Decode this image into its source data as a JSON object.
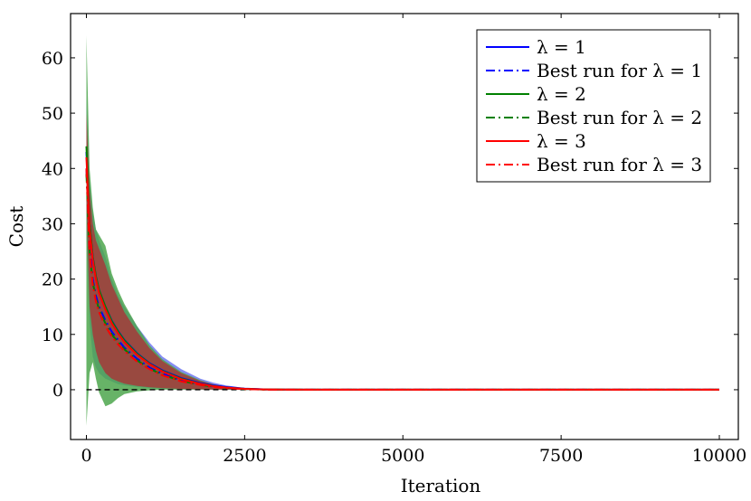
{
  "chart_data": {
    "type": "area",
    "xlabel": "Iteration",
    "ylabel": "Cost",
    "xlim": [
      -250,
      10300
    ],
    "ylim": [
      -9,
      68
    ],
    "xticks": [
      0,
      2500,
      5000,
      7500,
      10000
    ],
    "xtick_labels": [
      "0",
      "2500",
      "5000",
      "7500",
      "10000"
    ],
    "yticks": [
      0,
      10,
      20,
      30,
      40,
      50,
      60
    ],
    "ytick_labels": [
      "0",
      "10",
      "20",
      "30",
      "40",
      "50",
      "60"
    ],
    "grid": false,
    "legend_position": "top-right",
    "reference_line": {
      "y": 0,
      "style": "dashed",
      "color": "#000000"
    },
    "x": [
      0,
      50,
      100,
      150,
      200,
      300,
      400,
      500,
      600,
      800,
      1000,
      1200,
      1500,
      1800,
      2000,
      2200,
      2500,
      2800,
      3000,
      3500,
      4000,
      5000,
      6000,
      7000,
      8000,
      9000,
      10000
    ],
    "series": [
      {
        "name": "λ = 1",
        "color": "#0000ff",
        "style": "solid",
        "band_color": "#6f78f0",
        "values": [
          43,
          30,
          24,
          20.5,
          18,
          15,
          12.5,
          10.6,
          9,
          6.6,
          4.8,
          3.5,
          2.1,
          1.2,
          0.8,
          0.5,
          0.2,
          0.08,
          0.03,
          0,
          0,
          0,
          0,
          0,
          0,
          0,
          0
        ],
        "upper": [
          53,
          38,
          32,
          29,
          27,
          24,
          20,
          17,
          15,
          11.5,
          8.5,
          6,
          3.7,
          2,
          1.3,
          0.8,
          0.3,
          0.1,
          0.05,
          0,
          0,
          0,
          0,
          0,
          0,
          0,
          0
        ],
        "lower": [
          28,
          12,
          6,
          4,
          3,
          2,
          1.5,
          1,
          0.8,
          0.5,
          0.3,
          0.2,
          0.1,
          0.05,
          0,
          0,
          0,
          0,
          0,
          0,
          0,
          0,
          0,
          0,
          0,
          0,
          0
        ]
      },
      {
        "name": "Best run for λ = 1",
        "color": "#0000ff",
        "style": "dashdot",
        "values": [
          40,
          26,
          20,
          17,
          15,
          12.5,
          10.5,
          9,
          7.6,
          5.6,
          4,
          2.9,
          1.7,
          1,
          0.6,
          0.4,
          0.15,
          0.05,
          0.02,
          0,
          0,
          0,
          0,
          0,
          0,
          0,
          0
        ]
      },
      {
        "name": "λ = 2",
        "color": "#008000",
        "style": "solid",
        "band_color": "#4ca64c",
        "values": [
          44,
          30,
          24,
          20.5,
          18,
          15,
          12.4,
          10.5,
          8.9,
          6.5,
          4.7,
          3.4,
          2,
          1.1,
          0.7,
          0.4,
          0.15,
          0.05,
          0.02,
          0,
          0,
          0,
          0,
          0,
          0,
          0,
          0
        ],
        "upper": [
          64,
          40,
          33,
          29,
          28,
          26,
          21,
          18,
          15.5,
          11.5,
          8,
          5.5,
          3.2,
          1.7,
          1,
          0.6,
          0.2,
          0.08,
          0.03,
          0,
          0,
          0,
          0,
          0,
          0,
          0,
          0
        ],
        "lower": [
          -6.5,
          3,
          5,
          2,
          -0.5,
          -3,
          -2.5,
          -1.5,
          -0.8,
          -0.3,
          -0.1,
          0,
          0,
          0,
          0,
          0,
          0,
          0,
          0,
          0,
          0,
          0,
          0,
          0,
          0,
          0,
          0
        ]
      },
      {
        "name": "Best run for λ = 2",
        "color": "#008000",
        "style": "dashdot",
        "values": [
          39,
          25,
          19.5,
          16.5,
          14.5,
          12,
          10,
          8.6,
          7.3,
          5.3,
          3.8,
          2.7,
          1.6,
          0.9,
          0.55,
          0.35,
          0.12,
          0.04,
          0.02,
          0,
          0,
          0,
          0,
          0,
          0,
          0,
          0
        ]
      },
      {
        "name": "λ = 3",
        "color": "#ff0000",
        "style": "solid",
        "band_color": "#a63a3a",
        "values": [
          42,
          29,
          23.5,
          20,
          17.5,
          14.5,
          12,
          10.2,
          8.6,
          6.3,
          4.6,
          3.3,
          1.9,
          1.05,
          0.65,
          0.4,
          0.15,
          0.05,
          0.02,
          0,
          0,
          0,
          0,
          0,
          0,
          0,
          0
        ],
        "upper": [
          50,
          36,
          30,
          27,
          25.5,
          22.5,
          19,
          16.5,
          14,
          10.5,
          7.5,
          5.2,
          3,
          1.6,
          1,
          0.6,
          0.2,
          0.07,
          0.03,
          0,
          0,
          0,
          0,
          0,
          0,
          0,
          0
        ],
        "lower": [
          34,
          15,
          10,
          7,
          5,
          3,
          2,
          1.5,
          1.1,
          0.7,
          0.45,
          0.3,
          0.15,
          0.07,
          0.03,
          0.01,
          0,
          0,
          0,
          0,
          0,
          0,
          0,
          0,
          0,
          0,
          0
        ]
      },
      {
        "name": "Best run for λ = 3",
        "color": "#ff0000",
        "style": "dashdot",
        "values": [
          40,
          25,
          19,
          16,
          14,
          11.5,
          9.6,
          8.2,
          7,
          5.1,
          3.7,
          2.6,
          1.5,
          0.85,
          0.5,
          0.3,
          0.1,
          0.03,
          0.01,
          0,
          0,
          0,
          0,
          0,
          0,
          0,
          0
        ]
      }
    ]
  }
}
